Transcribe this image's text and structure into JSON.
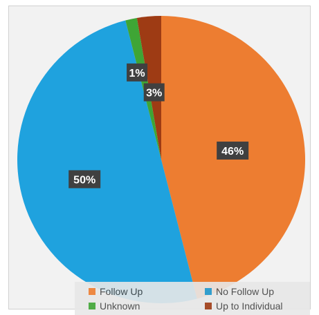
{
  "chart_data": {
    "type": "pie",
    "title": "",
    "slices": [
      {
        "label": "Follow Up",
        "value": 46,
        "color": "#ED7D31",
        "data_label": "46%"
      },
      {
        "label": "No Follow Up",
        "value": 50,
        "color": "#1FA2DE",
        "data_label": "50%"
      },
      {
        "label": "Unknown",
        "value": 1.3,
        "color": "#3FA535",
        "data_label": "1%"
      },
      {
        "label": "Up to Individual",
        "value": 2.7,
        "color": "#9E3B14",
        "data_label": "3%"
      }
    ],
    "legend_position": "bottom-right"
  },
  "legend": {
    "items": [
      {
        "label": "Follow Up",
        "color": "#ED7D31"
      },
      {
        "label": "No Follow Up",
        "color": "#1FA2DE"
      },
      {
        "label": "Unknown",
        "color": "#3FA535"
      },
      {
        "label": "Up to Individual",
        "color": "#9E3B14"
      }
    ]
  }
}
